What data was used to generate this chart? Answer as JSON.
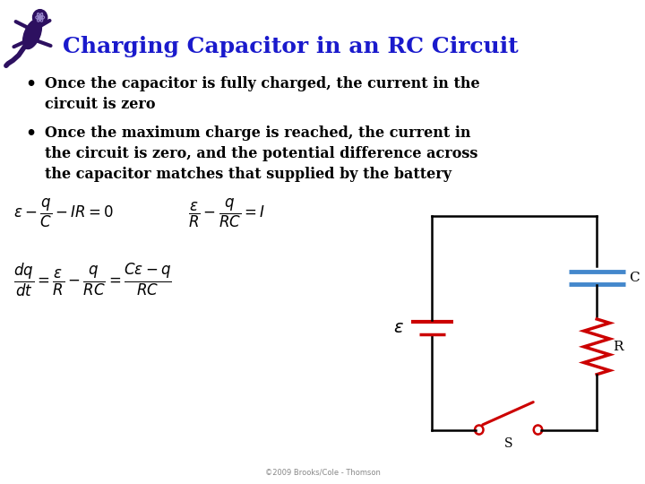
{
  "title": "Charging Capacitor in an RC Circuit",
  "title_color": "#1a1acc",
  "title_fontsize": 18,
  "bg_color": "#ffffff",
  "bullet1_line1": "Once the capacitor is fully charged, the current in the",
  "bullet1_line2": "circuit is zero",
  "bullet2_line1": "Once the maximum charge is reached, the current in",
  "bullet2_line2": "the circuit is zero, and the potential difference across",
  "bullet2_line3": "the capacitor matches that supplied by the battery",
  "bullet_color": "#000000",
  "bullet_fontsize": 11.5,
  "eq1": "$\\varepsilon - \\dfrac{q}{C} - IR = 0$",
  "eq2": "$\\dfrac{\\varepsilon}{R} - \\dfrac{q}{RC} = I$",
  "eq3": "$\\dfrac{dq}{dt} = \\dfrac{\\varepsilon}{R} - \\dfrac{q}{RC} = \\dfrac{C\\varepsilon - q}{RC}$",
  "eq_color": "#000000",
  "eq_fontsize": 12,
  "footer_text": "©2009 Brooks/Cole - Thomson",
  "footer_color": "#888888",
  "footer_fontsize": 6,
  "gecko_color": "#2d1060",
  "black": "#000000",
  "red": "#cc0000",
  "blue": "#4488cc"
}
